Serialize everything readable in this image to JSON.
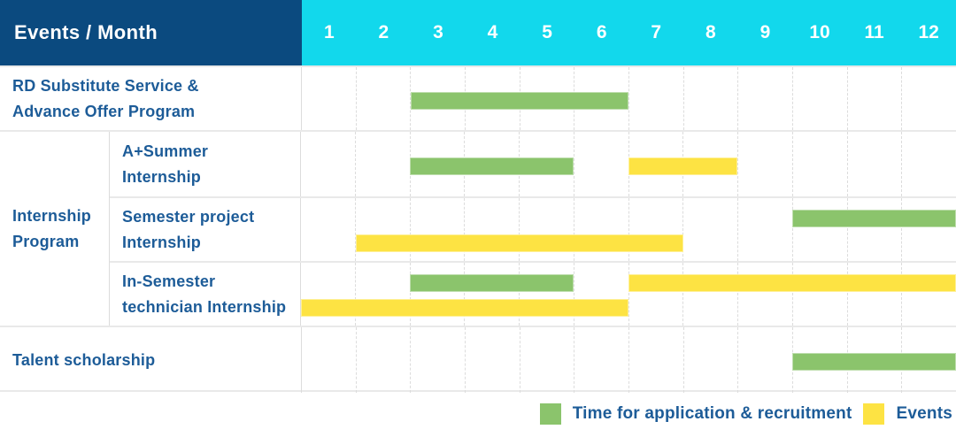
{
  "header": {
    "title": "Events / Month",
    "months": [
      "1",
      "2",
      "3",
      "4",
      "5",
      "6",
      "7",
      "8",
      "9",
      "10",
      "11",
      "12"
    ]
  },
  "colors": {
    "header_bg": "#0b4a7f",
    "months_bg": "#12d8ec",
    "green": "#8bc46c",
    "yellow": "#fde343",
    "text_blue": "#1d5c98"
  },
  "labels": {
    "rd_program": "RD Substitute Service &\nAdvance Offer Program",
    "internship_group": "Internship\nProgram",
    "a_summer": "A+Summer\nInternship",
    "semester_project": "Semester project\nInternship",
    "in_semester": "In-Semester\ntechnician Internship",
    "talent": "Talent scholarship"
  },
  "chart_data": {
    "type": "bar",
    "variant": "horizontal-gantt",
    "x_axis": {
      "label": "Month",
      "ticks": [
        "1",
        "2",
        "3",
        "4",
        "5",
        "6",
        "7",
        "8",
        "9",
        "10",
        "11",
        "12"
      ],
      "range": [
        1,
        12
      ]
    },
    "grid": true,
    "rows": [
      {
        "group": null,
        "label": "RD Substitute Service & Advance Offer Program",
        "bars": [
          {
            "series": "application",
            "start_month": 3,
            "end_month": 6,
            "band": "single"
          }
        ]
      },
      {
        "group": "Internship Program",
        "label": "A+Summer Internship",
        "bars": [
          {
            "series": "application",
            "start_month": 3,
            "end_month": 5,
            "band": "single"
          },
          {
            "series": "events",
            "start_month": 7,
            "end_month": 8,
            "band": "single"
          }
        ]
      },
      {
        "group": "Internship Program",
        "label": "Semester project Internship",
        "bars": [
          {
            "series": "application",
            "start_month": 10,
            "end_month": 12,
            "band": "top"
          },
          {
            "series": "events",
            "start_month": 2,
            "end_month": 7,
            "band": "bottom"
          }
        ]
      },
      {
        "group": "Internship Program",
        "label": "In-Semester technician Internship",
        "bars": [
          {
            "series": "application",
            "start_month": 3,
            "end_month": 5,
            "band": "top"
          },
          {
            "series": "events",
            "start_month": 7,
            "end_month": 12,
            "band": "top"
          },
          {
            "series": "events",
            "start_month": 1,
            "end_month": 6,
            "band": "bottom"
          }
        ]
      },
      {
        "group": null,
        "label": "Talent scholarship",
        "bars": [
          {
            "series": "application",
            "start_month": 10,
            "end_month": 12,
            "band": "single"
          }
        ]
      }
    ],
    "legend": [
      {
        "series": "application",
        "label": "Time for application & recruitment",
        "color": "#8bc46c"
      },
      {
        "series": "events",
        "label": "Events",
        "color": "#fde343"
      }
    ],
    "legend_position": "bottom-right"
  }
}
